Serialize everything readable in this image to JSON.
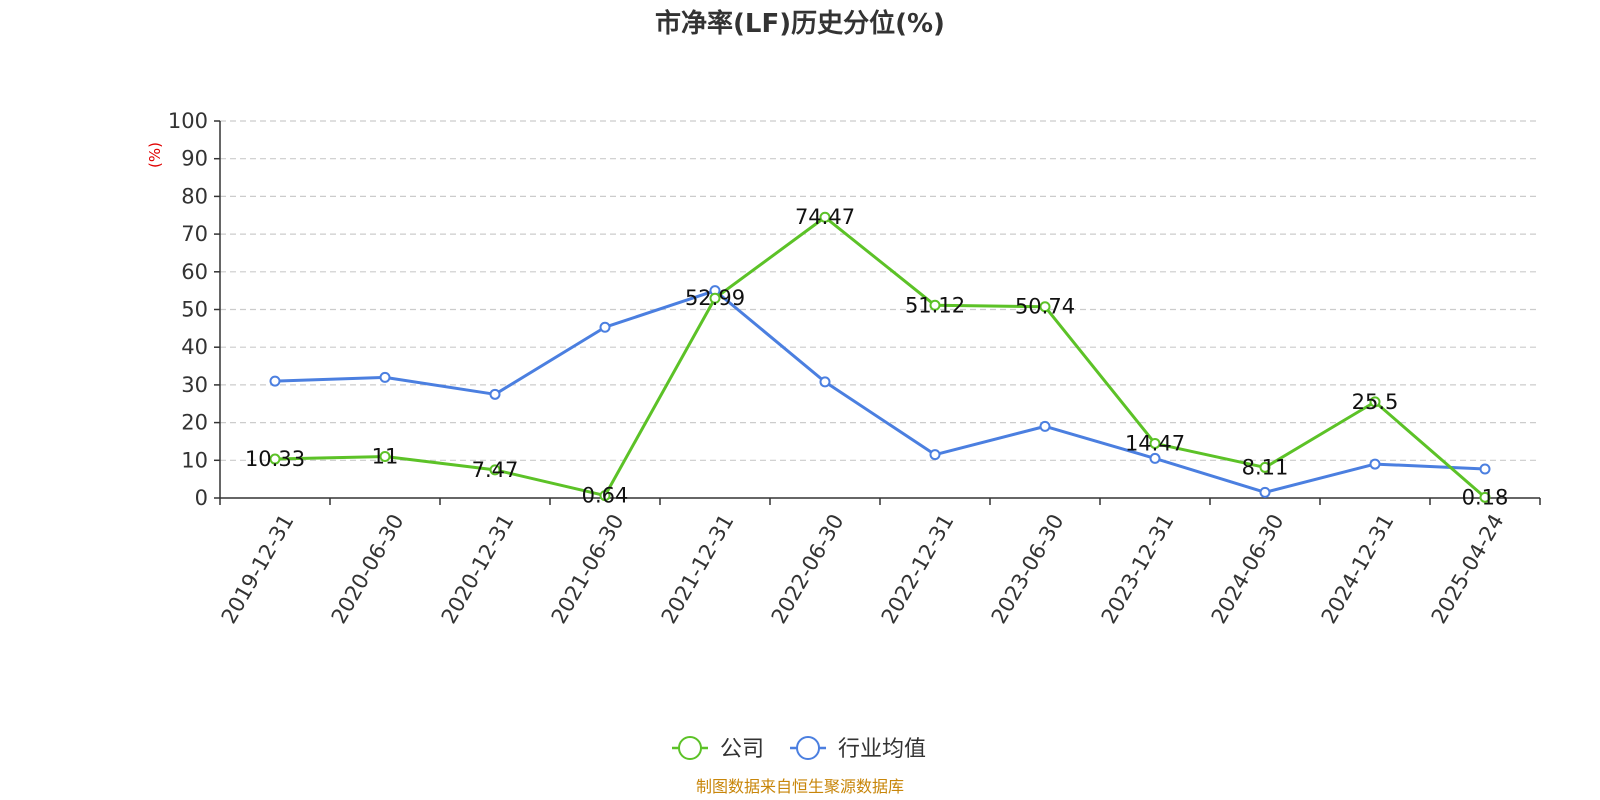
{
  "chart_data": {
    "type": "line",
    "title": "市净率(LF)历史分位(%)",
    "ylabel": "(%)",
    "ylim": [
      0,
      100
    ],
    "yticks": [
      0,
      10,
      20,
      30,
      40,
      50,
      60,
      70,
      80,
      90,
      100
    ],
    "grid": true,
    "legend_position": "bottom-center",
    "categories": [
      "2019-12-31",
      "2020-06-30",
      "2020-12-31",
      "2021-06-30",
      "2021-12-31",
      "2022-06-30",
      "2022-12-31",
      "2023-06-30",
      "2023-12-31",
      "2024-06-30",
      "2024-12-31",
      "2025-04-24"
    ],
    "series": [
      {
        "name": "公司",
        "color": "#5cc227",
        "values": [
          10.33,
          11,
          7.47,
          0.64,
          52.99,
          74.47,
          51.12,
          50.74,
          14.47,
          8.11,
          25.5,
          0.18
        ],
        "show_labels": true
      },
      {
        "name": "行业均值",
        "color": "#4b7fe0",
        "values": [
          31,
          32,
          27.5,
          45.3,
          55,
          30.8,
          11.5,
          19,
          10.5,
          1.5,
          9,
          7.7
        ],
        "show_labels": false
      }
    ],
    "source": "制图数据来自恒生聚源数据库",
    "unit_color": "#e00000",
    "source_color": "#c8860a"
  }
}
